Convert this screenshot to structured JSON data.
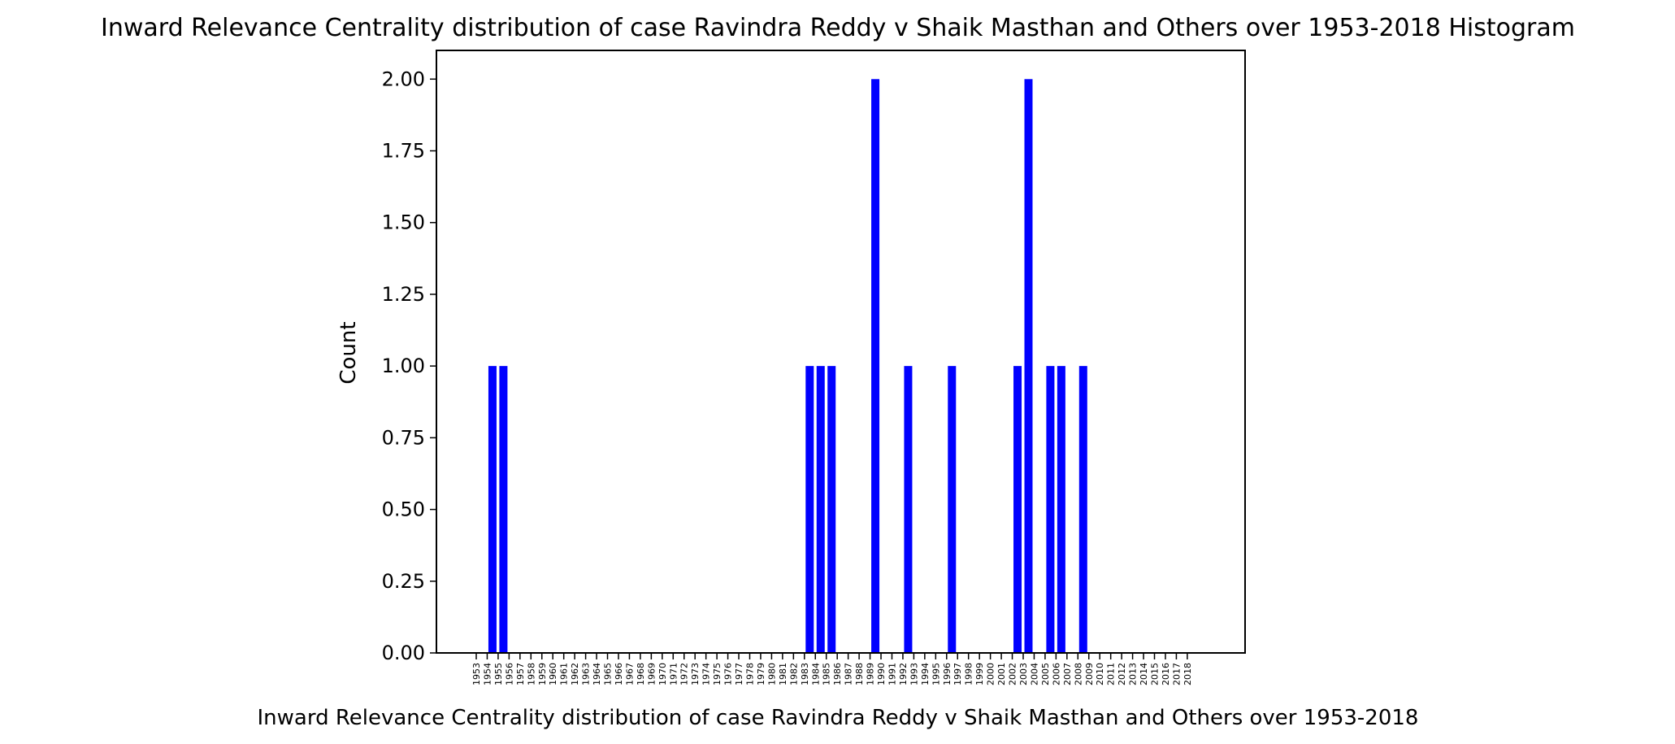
{
  "chart_data": {
    "type": "bar",
    "title": "Inward Relevance Centrality distribution of case Ravindra Reddy v Shaik Masthan and Others over 1953-2018 Histogram",
    "xlabel": "Inward Relevance Centrality distribution of case Ravindra Reddy v Shaik Masthan and Others over 1953-2018",
    "ylabel": "Count",
    "categories": [
      "1953",
      "1954",
      "1955",
      "1956",
      "1957",
      "1958",
      "1959",
      "1960",
      "1961",
      "1962",
      "1963",
      "1964",
      "1965",
      "1966",
      "1967",
      "1968",
      "1969",
      "1970",
      "1971",
      "1972",
      "1973",
      "1974",
      "1975",
      "1976",
      "1977",
      "1978",
      "1979",
      "1980",
      "1981",
      "1982",
      "1983",
      "1984",
      "1985",
      "1986",
      "1987",
      "1988",
      "1989",
      "1990",
      "1991",
      "1992",
      "1993",
      "1994",
      "1995",
      "1996",
      "1997",
      "1998",
      "1999",
      "2000",
      "2001",
      "2002",
      "2003",
      "2004",
      "2005",
      "2006",
      "2007",
      "2008",
      "2009",
      "2010",
      "2011",
      "2012",
      "2013",
      "2014",
      "2015",
      "2016",
      "2017",
      "2018"
    ],
    "values": [
      0,
      1,
      1,
      0,
      0,
      0,
      0,
      0,
      0,
      0,
      0,
      0,
      0,
      0,
      0,
      0,
      0,
      0,
      0,
      0,
      0,
      0,
      0,
      0,
      0,
      0,
      0,
      0,
      0,
      0,
      1,
      1,
      1,
      0,
      0,
      0,
      2,
      0,
      0,
      1,
      0,
      0,
      0,
      1,
      0,
      0,
      0,
      0,
      0,
      1,
      2,
      0,
      1,
      1,
      0,
      1,
      0,
      0,
      0,
      0,
      0,
      0,
      0,
      0,
      0,
      0
    ],
    "ylim": [
      0,
      2.1
    ],
    "yticks": [
      "0.00",
      "0.25",
      "0.50",
      "0.75",
      "1.00",
      "1.25",
      "1.50",
      "1.75",
      "2.00"
    ],
    "grid": false,
    "bar_color": "#0000ff"
  }
}
